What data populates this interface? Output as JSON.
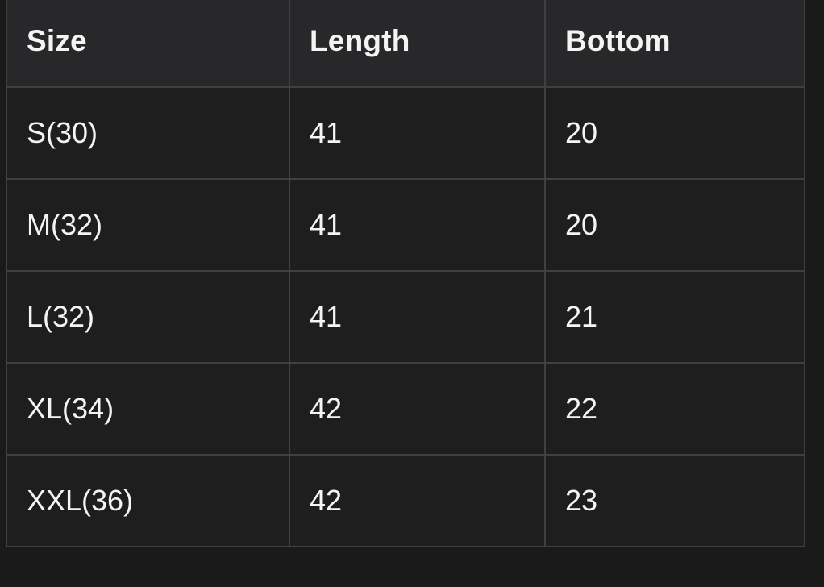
{
  "colors": {
    "page_background": "#1a1a1b",
    "header_background": "#28282a",
    "row_background": "#1e1e1f",
    "border": "#404043",
    "text": "#f4f4f3"
  },
  "size_chart": {
    "columns": [
      {
        "label": "Size"
      },
      {
        "label": "Length"
      },
      {
        "label": "Bottom"
      }
    ],
    "rows": [
      {
        "size": "S(30)",
        "length": "41",
        "bottom": "20"
      },
      {
        "size": "M(32)",
        "length": "41",
        "bottom": "20"
      },
      {
        "size": "L(32)",
        "length": "41",
        "bottom": "21"
      },
      {
        "size": "XL(34)",
        "length": "42",
        "bottom": "22"
      },
      {
        "size": "XXL(36)",
        "length": "42",
        "bottom": "23"
      }
    ]
  }
}
